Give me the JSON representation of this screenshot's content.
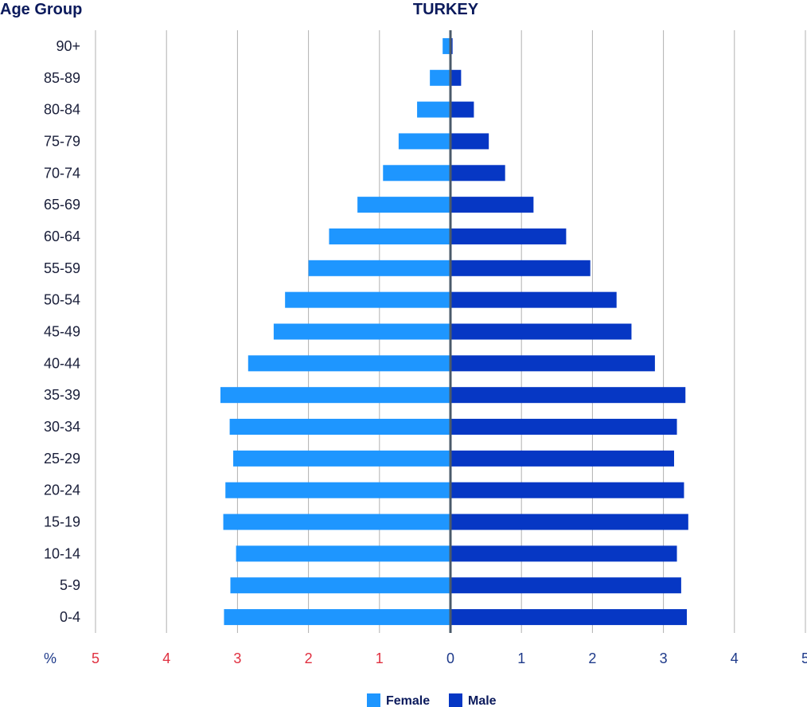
{
  "chart_data": {
    "type": "bar",
    "orientation": "horizontal",
    "layout": "population-pyramid",
    "title": "TURKEY",
    "ylabel": "Age Group",
    "xlabel": "%",
    "categories": [
      "0-4",
      "5-9",
      "10-14",
      "15-19",
      "20-24",
      "25-29",
      "30-34",
      "35-39",
      "40-44",
      "45-49",
      "50-54",
      "55-59",
      "60-64",
      "65-69",
      "70-74",
      "75-79",
      "80-84",
      "85-89",
      "90+"
    ],
    "series": [
      {
        "name": "Female",
        "side": "left",
        "color": "#1e96ff",
        "values": [
          3.19,
          3.1,
          3.02,
          3.2,
          3.17,
          3.06,
          3.11,
          3.24,
          2.85,
          2.49,
          2.33,
          2.0,
          1.71,
          1.31,
          0.95,
          0.73,
          0.47,
          0.29,
          0.11
        ]
      },
      {
        "name": "Male",
        "side": "right",
        "color": "#0637c4",
        "values": [
          3.33,
          3.25,
          3.19,
          3.35,
          3.29,
          3.15,
          3.19,
          3.31,
          2.88,
          2.55,
          2.34,
          1.97,
          1.63,
          1.17,
          0.77,
          0.54,
          0.33,
          0.15,
          0.03
        ]
      }
    ],
    "x_ticks_left": [
      "5",
      "4",
      "3",
      "2",
      "1"
    ],
    "x_ticks_right": [
      "0",
      "1",
      "2",
      "3",
      "4",
      "5"
    ],
    "xlim": [
      -5,
      5
    ],
    "grid": "vertical",
    "legend_position": "bottom-center",
    "colors": {
      "title": "#0b1a5c",
      "axis_label": "#0b1a5c",
      "left_tick": "#e03040",
      "right_tick": "#1e3a8a",
      "grid": "#b0b0b0",
      "center_axis": "#4a5a6a"
    }
  }
}
